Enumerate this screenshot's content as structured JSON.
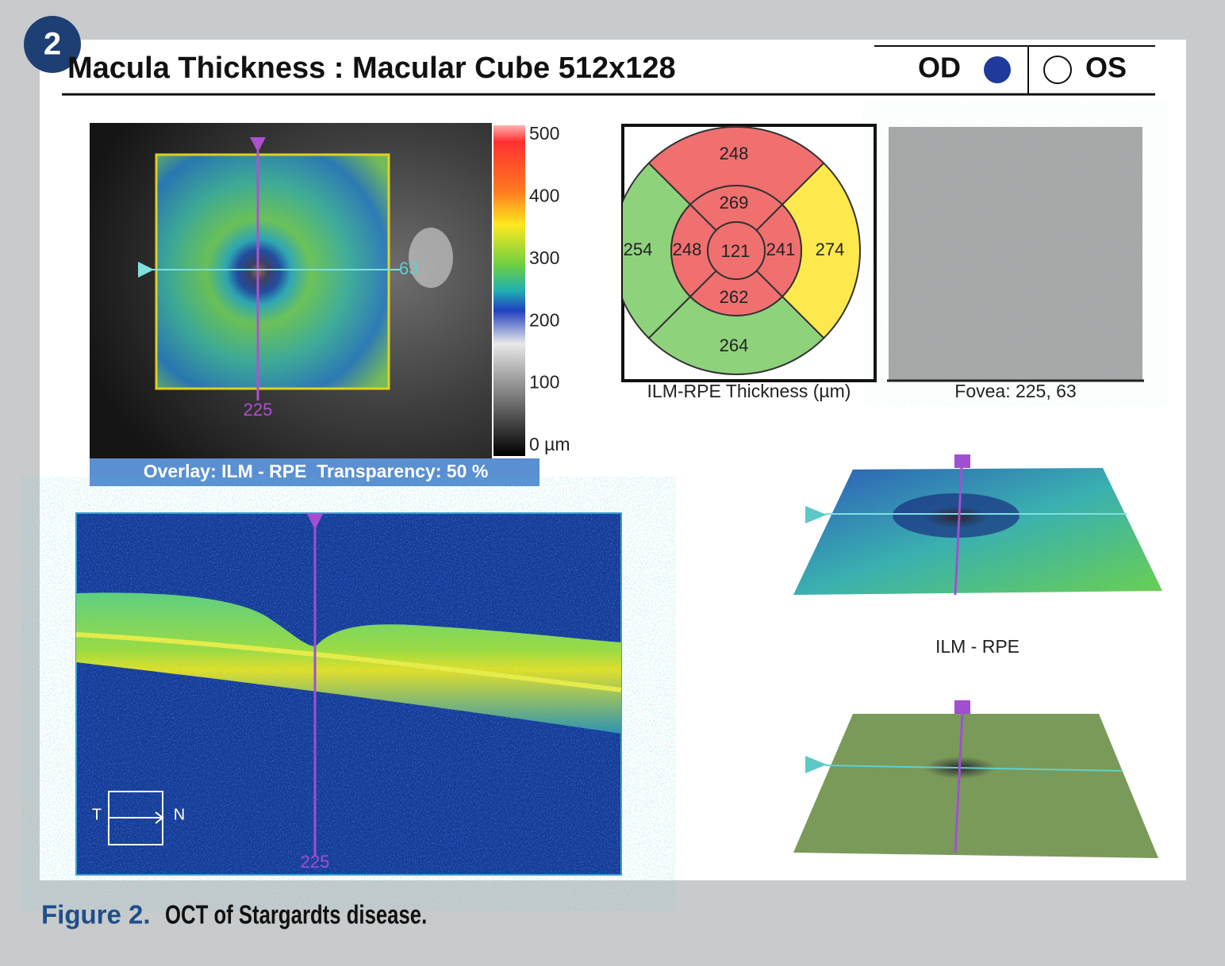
{
  "badge": "2",
  "header": {
    "title": "Macula Thickness : Macular Cube 512x128",
    "od": "OD",
    "os": "OS"
  },
  "fundus": {
    "horizontal_marker": "63",
    "vertical_marker": "225",
    "colorbar_labels": [
      "500",
      "400",
      "300",
      "200",
      "100",
      "0 µm"
    ],
    "overlay_caption": "Overlay: ILM - RPE  Transparency: 50 %"
  },
  "thickness_map": {
    "superior_outer": 248,
    "superior_inner": 269,
    "temporal_outer": 254,
    "temporal_inner": 248,
    "central": 121,
    "nasal_inner": 241,
    "nasal_outer": 274,
    "inferior_inner": 262,
    "inferior_outer": 264,
    "caption": "ILM-RPE Thickness (µm)"
  },
  "fovea": {
    "caption": "Fovea: 225, 63"
  },
  "bscan": {
    "position_marker": "225",
    "temporal": "T",
    "nasal": "N"
  },
  "surface_3d": {
    "label": "ILM - RPE"
  },
  "figure_caption": {
    "label": "Figure 2.",
    "text": "OCT of Stargardts disease."
  }
}
